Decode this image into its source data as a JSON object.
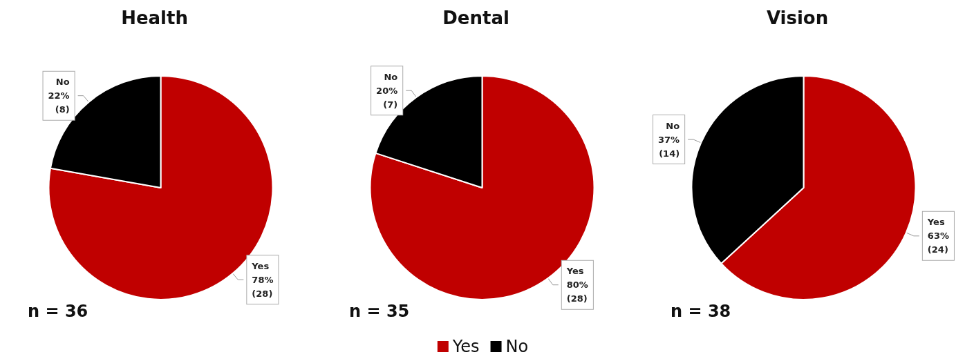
{
  "chart_data": [
    {
      "type": "pie",
      "title": "Health",
      "categories": [
        "Yes",
        "No"
      ],
      "values": [
        28,
        8
      ],
      "colors": [
        "#c00000",
        "#000000"
      ],
      "value_labels": [
        "78%\n(28)",
        "22%\n(8)"
      ],
      "annotations": [
        "n = 36"
      ]
    },
    {
      "type": "pie",
      "title": "Dental",
      "categories": [
        "Yes",
        "No"
      ],
      "values": [
        28,
        7
      ],
      "colors": [
        "#c00000",
        "#000000"
      ],
      "value_labels": [
        "80%\n(28)",
        "20%\n(7)"
      ],
      "annotations": [
        "n = 35"
      ],
      "legend": "bottom"
    },
    {
      "type": "pie",
      "title": "Vision",
      "categories": [
        "Yes",
        "No"
      ],
      "values": [
        24,
        14
      ],
      "colors": [
        "#c00000",
        "#000000"
      ],
      "value_labels": [
        "63%\n(24)",
        "37%\n(14)"
      ],
      "annotations": [
        "n = 38"
      ]
    }
  ]
}
